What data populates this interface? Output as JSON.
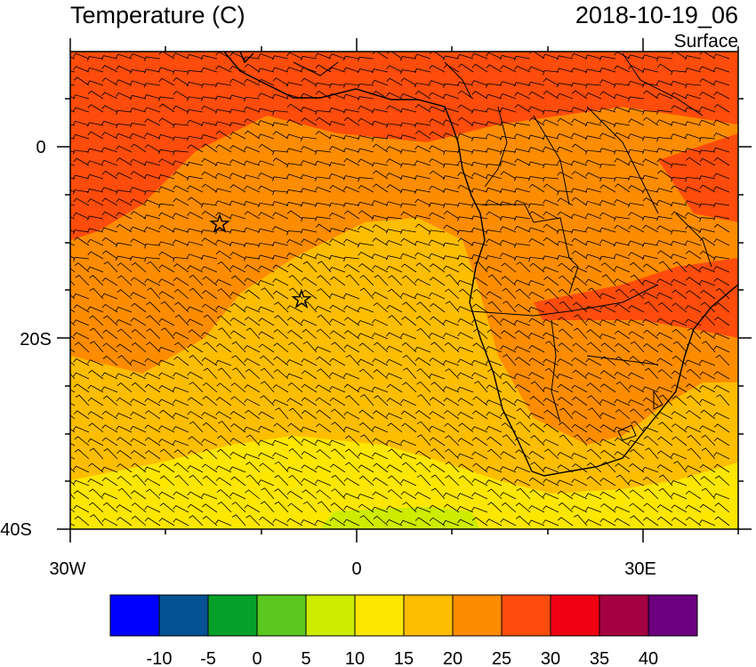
{
  "title": "Temperature (C)",
  "datetime": "2018-10-19_06",
  "level": "Surface",
  "lon_labels": [
    "30W",
    "0",
    "30E"
  ],
  "lat_labels": [
    "0",
    "20S",
    "40S"
  ],
  "colorbar": {
    "labels": [
      "-10",
      "-5",
      "0",
      "5",
      "10",
      "15",
      "20",
      "25",
      "30",
      "35",
      "40"
    ],
    "colors": [
      "#0000ff",
      "#045293",
      "#05a02a",
      "#5ac81e",
      "#ccec00",
      "#fde600",
      "#fdbd00",
      "#fd8c00",
      "#fd4c0b",
      "#f00013",
      "#a50041",
      "#6a007d"
    ]
  },
  "field_colors": {
    "hot": "#fd4c0b",
    "warm": "#fd8c00",
    "mild": "#fdbd00",
    "cool": "#fde600",
    "cold": "#ccec00"
  },
  "markers": [
    "star-marker",
    "star-marker"
  ]
}
